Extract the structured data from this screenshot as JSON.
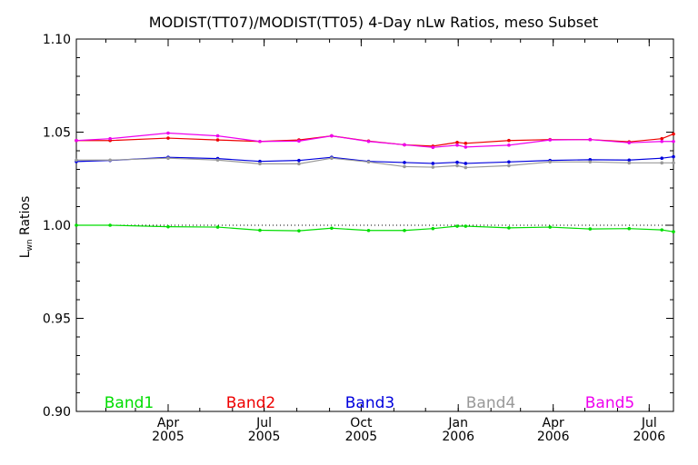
{
  "chart_data": {
    "type": "line",
    "title": "MODIST(TT07)/MODIST(TT05) 4-Day nLw Ratios, meso Subset",
    "ylabel": "Lwn Ratios",
    "ylabel_main": "L",
    "ylabel_sub": "wn",
    "ylabel_rest": " Ratios",
    "xlabel": "",
    "ylim": [
      0.9,
      1.1
    ],
    "xlim": [
      "2005-01-04",
      "2006-07-24"
    ],
    "reference_line": 1.0,
    "yticks": [
      "0.90",
      "0.95",
      "1.00",
      "1.05",
      "1.10"
    ],
    "xticks": [
      {
        "date": "2005-04-01",
        "month": "Apr",
        "year": "2005"
      },
      {
        "date": "2005-07-01",
        "month": "Jul",
        "year": "2005"
      },
      {
        "date": "2005-10-01",
        "month": "Oct",
        "year": "2005"
      },
      {
        "date": "2006-01-01",
        "month": "Jan",
        "year": "2006"
      },
      {
        "date": "2006-04-01",
        "month": "Apr",
        "year": "2006"
      },
      {
        "date": "2006-07-01",
        "month": "Jul",
        "year": "2006"
      }
    ],
    "x": [
      "2005-01-04",
      "2005-02-05",
      "2005-04-01",
      "2005-05-18",
      "2005-06-27",
      "2005-08-03",
      "2005-09-03",
      "2005-10-08",
      "2005-11-11",
      "2005-12-08",
      "2005-12-31",
      "2006-01-08",
      "2006-02-18",
      "2006-03-29",
      "2006-05-06",
      "2006-06-12",
      "2006-07-13",
      "2006-07-24"
    ],
    "series": [
      {
        "name": "Band1",
        "color": "#00dd00",
        "values": [
          1.0,
          1.0,
          0.9992,
          0.999,
          0.9973,
          0.997,
          0.9984,
          0.9972,
          0.9972,
          0.9982,
          0.9995,
          0.9995,
          0.9986,
          0.999,
          0.998,
          0.9982,
          0.9975,
          0.9965
        ]
      },
      {
        "name": "Band2",
        "color": "#ee0000",
        "values": [
          1.0455,
          1.0455,
          1.0468,
          1.0458,
          1.045,
          1.0458,
          1.048,
          1.0452,
          1.0432,
          1.0425,
          1.0445,
          1.044,
          1.0455,
          1.046,
          1.046,
          1.0448,
          1.0465,
          1.049
        ]
      },
      {
        "name": "Band3",
        "color": "#0000dd",
        "values": [
          1.0342,
          1.0348,
          1.0365,
          1.0358,
          1.0343,
          1.0348,
          1.0365,
          1.0343,
          1.0337,
          1.0332,
          1.0338,
          1.0332,
          1.034,
          1.0348,
          1.0352,
          1.035,
          1.036,
          1.0368
        ]
      },
      {
        "name": "Band4",
        "color": "#999999",
        "values": [
          1.035,
          1.035,
          1.036,
          1.035,
          1.033,
          1.033,
          1.036,
          1.034,
          1.0315,
          1.0312,
          1.032,
          1.031,
          1.032,
          1.034,
          1.034,
          1.0335,
          1.0335,
          1.0335
        ]
      },
      {
        "name": "Band5",
        "color": "#ee00ee",
        "values": [
          1.0455,
          1.0465,
          1.0495,
          1.048,
          1.045,
          1.0452,
          1.048,
          1.045,
          1.0432,
          1.0418,
          1.043,
          1.042,
          1.043,
          1.0458,
          1.046,
          1.0443,
          1.045,
          1.045
        ]
      }
    ],
    "legend": "bottom, inside plot, horizontal",
    "grid": false
  }
}
